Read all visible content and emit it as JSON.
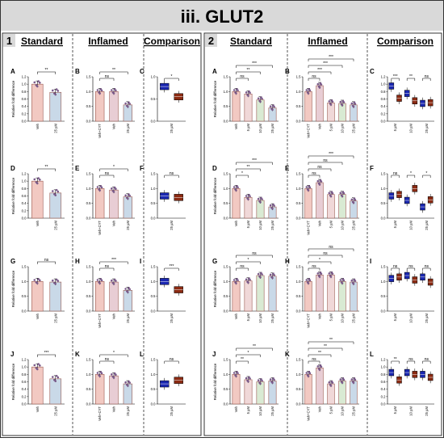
{
  "title": "iii. GLUT2",
  "colors": {
    "veh": "#f2c9c2",
    "bar_edge": "#9a5a50",
    "inflamed": "#e8cdd4",
    "conc5": "#f0d8d8",
    "conc10": "#d9ead3",
    "conc25": "#c9d9e8",
    "box_standard": "#1a27b0",
    "box_inflamed": "#8b2a12",
    "point": "#7a5a8a"
  },
  "panels": [
    {
      "number": "1",
      "headers": [
        "Standard",
        "Inflamed",
        "Comparison"
      ]
    },
    {
      "number": "2",
      "headers": [
        "Standard",
        "Inflamed",
        "Comparison"
      ]
    }
  ],
  "ylabel": "Relative fold difference",
  "sig": {
    "ns": "ns",
    "s1": "*",
    "s2": "**",
    "s3": "***"
  },
  "chart_data": [
    {
      "id": "1A",
      "type": "bar",
      "categories": [
        "Veh",
        "25 µM"
      ],
      "values": [
        1.0,
        0.78
      ],
      "ylim": [
        0,
        1.2
      ],
      "yticks": [
        0.0,
        0.2,
        0.4,
        0.6,
        0.8,
        1.0,
        1.2
      ],
      "annotations": [
        {
          "from": 0,
          "to": 1,
          "label": "**"
        }
      ]
    },
    {
      "id": "1B",
      "type": "bar",
      "categories": [
        "Veh+CYT",
        "Veh",
        "25 µM"
      ],
      "values": [
        1.0,
        1.0,
        0.55
      ],
      "ylim": [
        0,
        1.5
      ],
      "yticks": [
        0.0,
        0.5,
        1.0,
        1.5
      ],
      "annotations": [
        {
          "from": 0,
          "to": 1,
          "label": "ns"
        },
        {
          "from": 0,
          "to": 2,
          "label": "**"
        }
      ]
    },
    {
      "id": "1C",
      "type": "box",
      "categories": [
        "25 µM"
      ],
      "values": [
        0.78,
        0.55
      ],
      "ylim": [
        0,
        1.0
      ],
      "yticks": [
        0.0,
        0.5,
        1.0
      ],
      "annotations": [
        {
          "from": 0,
          "to": 1,
          "label": "*"
        }
      ]
    },
    {
      "id": "1D",
      "type": "bar",
      "categories": [
        "Veh",
        "25 µM"
      ],
      "values": [
        1.0,
        0.68
      ],
      "ylim": [
        0,
        1.2
      ],
      "yticks": [
        0.0,
        0.2,
        0.4,
        0.6,
        0.8,
        1.0,
        1.2
      ],
      "annotations": [
        {
          "from": 0,
          "to": 1,
          "label": "**"
        }
      ]
    },
    {
      "id": "1E",
      "type": "bar",
      "categories": [
        "Veh+CYT",
        "Veh",
        "25 µM"
      ],
      "values": [
        1.0,
        0.95,
        0.72
      ],
      "ylim": [
        0,
        1.5
      ],
      "yticks": [
        0.0,
        0.5,
        1.0,
        1.5
      ],
      "annotations": [
        {
          "from": 0,
          "to": 1,
          "label": "ns"
        },
        {
          "from": 0,
          "to": 2,
          "label": "*"
        }
      ]
    },
    {
      "id": "1F",
      "type": "box",
      "categories": [
        "25 µM"
      ],
      "values": [
        0.75,
        0.7
      ],
      "ylim": [
        0,
        1.5
      ],
      "yticks": [
        0.0,
        0.5,
        1.0,
        1.5
      ],
      "annotations": [
        {
          "from": 0,
          "to": 1,
          "label": "ns"
        }
      ]
    },
    {
      "id": "1G",
      "type": "bar",
      "categories": [
        "Veh",
        "25 µM"
      ],
      "values": [
        1.0,
        0.98
      ],
      "ylim": [
        0,
        1.5
      ],
      "yticks": [
        0.0,
        0.5,
        1.0,
        1.5
      ],
      "annotations": [
        {
          "from": 0,
          "to": 1,
          "label": "ns"
        }
      ]
    },
    {
      "id": "1H",
      "type": "bar",
      "categories": [
        "Veh+CYT",
        "Veh",
        "25 µM"
      ],
      "values": [
        1.0,
        0.98,
        0.7
      ],
      "ylim": [
        0,
        1.5
      ],
      "yticks": [
        0.0,
        0.5,
        1.0,
        1.5
      ],
      "annotations": [
        {
          "from": 0,
          "to": 1,
          "label": "ns"
        },
        {
          "from": 0,
          "to": 2,
          "label": "***"
        }
      ]
    },
    {
      "id": "1I",
      "type": "box",
      "categories": [
        "25 µM"
      ],
      "values": [
        1.0,
        0.72
      ],
      "ylim": [
        0,
        1.5
      ],
      "yticks": [
        0.0,
        0.5,
        1.0,
        1.5
      ],
      "annotations": [
        {
          "from": 0,
          "to": 1,
          "label": "***"
        }
      ]
    },
    {
      "id": "1J",
      "type": "bar",
      "categories": [
        "Veh",
        "25 µM"
      ],
      "values": [
        1.0,
        0.68
      ],
      "ylim": [
        0,
        1.2
      ],
      "yticks": [
        0.0,
        0.2,
        0.4,
        0.6,
        0.8,
        1.0,
        1.2
      ],
      "annotations": [
        {
          "from": 0,
          "to": 1,
          "label": "***"
        }
      ]
    },
    {
      "id": "1K",
      "type": "bar",
      "categories": [
        "Veh+CYT",
        "Veh",
        "25 µM"
      ],
      "values": [
        1.0,
        0.95,
        0.68
      ],
      "ylim": [
        0,
        1.5
      ],
      "yticks": [
        0.0,
        0.5,
        1.0,
        1.5
      ],
      "annotations": [
        {
          "from": 0,
          "to": 1,
          "label": "ns"
        },
        {
          "from": 0,
          "to": 2,
          "label": "*"
        }
      ]
    },
    {
      "id": "1L",
      "type": "box",
      "categories": [
        "25 µM"
      ],
      "values": [
        0.68,
        0.8
      ],
      "ylim": [
        0,
        1.5
      ],
      "yticks": [
        0.0,
        0.5,
        1.0,
        1.5
      ],
      "annotations": [
        {
          "from": 0,
          "to": 1,
          "label": "ns"
        }
      ]
    },
    {
      "id": "2A",
      "type": "bar",
      "categories": [
        "Veh",
        "5 µM",
        "10 µM",
        "25 µM"
      ],
      "values": [
        1.0,
        0.92,
        0.72,
        0.45
      ],
      "ylim": [
        0,
        1.5
      ],
      "yticks": [
        0.0,
        0.5,
        1.0,
        1.5
      ],
      "annotations": [
        {
          "from": 0,
          "to": 1,
          "label": "ns"
        },
        {
          "from": 0,
          "to": 2,
          "label": "**"
        },
        {
          "from": 0,
          "to": 3,
          "label": "***"
        }
      ]
    },
    {
      "id": "2B",
      "type": "bar",
      "categories": [
        "Veh+CYT",
        "Veh",
        "5 µM",
        "10 µM",
        "25 µM"
      ],
      "values": [
        1.0,
        1.2,
        0.62,
        0.6,
        0.55
      ],
      "ylim": [
        0,
        1.5
      ],
      "yticks": [
        0.0,
        0.5,
        1.0,
        1.5
      ],
      "annotations": [
        {
          "from": 0,
          "to": 1,
          "label": "ns"
        },
        {
          "from": 0,
          "to": 2,
          "label": "***"
        },
        {
          "from": 0,
          "to": 3,
          "label": "***"
        },
        {
          "from": 0,
          "to": 4,
          "label": "***"
        }
      ]
    },
    {
      "id": "2C",
      "type": "box",
      "categories": [
        "5 µM",
        "10 µM",
        "25 µM"
      ],
      "values": [
        0.95,
        0.62,
        0.75,
        0.55,
        0.48,
        0.5
      ],
      "ylim": [
        0,
        1.2
      ],
      "yticks": [
        0.0,
        0.2,
        0.4,
        0.6,
        0.8,
        1.0,
        1.2
      ],
      "annotations": [
        {
          "from": 0,
          "to": 1,
          "label": "***"
        },
        {
          "from": 2,
          "to": 3,
          "label": "**"
        },
        {
          "from": 4,
          "to": 5,
          "label": "ns"
        }
      ]
    },
    {
      "id": "2D",
      "type": "bar",
      "categories": [
        "Veh",
        "5 µM",
        "10 µM",
        "25 µM"
      ],
      "values": [
        1.0,
        0.7,
        0.6,
        0.38
      ],
      "ylim": [
        0,
        1.5
      ],
      "yticks": [
        0.0,
        0.5,
        1.0,
        1.5
      ],
      "annotations": [
        {
          "from": 0,
          "to": 1,
          "label": "*"
        },
        {
          "from": 0,
          "to": 2,
          "label": "**"
        },
        {
          "from": 0,
          "to": 3,
          "label": "***"
        }
      ]
    },
    {
      "id": "2E",
      "type": "bar",
      "categories": [
        "Veh+CYT",
        "Veh",
        "5 µM",
        "10 µM",
        "25 µM"
      ],
      "values": [
        1.0,
        1.2,
        0.8,
        0.8,
        0.58
      ],
      "ylim": [
        0,
        1.5
      ],
      "yticks": [
        0.0,
        0.5,
        1.0,
        1.5
      ],
      "annotations": [
        {
          "from": 0,
          "to": 1,
          "label": "ns"
        },
        {
          "from": 0,
          "to": 2,
          "label": "ns"
        },
        {
          "from": 0,
          "to": 3,
          "label": "ns"
        },
        {
          "from": 0,
          "to": 4,
          "label": "***"
        }
      ]
    },
    {
      "id": "2F",
      "type": "box",
      "categories": [
        "5 µM",
        "10 µM",
        "25 µM"
      ],
      "values": [
        0.75,
        0.8,
        0.6,
        1.0,
        0.38,
        0.62
      ],
      "ylim": [
        0,
        1.5
      ],
      "yticks": [
        0.0,
        0.5,
        1.0,
        1.5
      ],
      "annotations": [
        {
          "from": 0,
          "to": 1,
          "label": "ns"
        },
        {
          "from": 2,
          "to": 3,
          "label": "*"
        },
        {
          "from": 4,
          "to": 5,
          "label": "*"
        }
      ]
    },
    {
      "id": "2G",
      "type": "bar",
      "categories": [
        "Veh",
        "5 µM",
        "10 µM",
        "25 µM"
      ],
      "values": [
        1.0,
        1.02,
        1.2,
        1.18
      ],
      "ylim": [
        0,
        1.5
      ],
      "yticks": [
        0.0,
        0.5,
        1.0,
        1.5
      ],
      "annotations": [
        {
          "from": 0,
          "to": 1,
          "label": "ns"
        },
        {
          "from": 0,
          "to": 2,
          "label": "*"
        },
        {
          "from": 0,
          "to": 3,
          "label": "ns"
        }
      ]
    },
    {
      "id": "2H",
      "type": "bar",
      "categories": [
        "Veh+CYT",
        "Veh",
        "5 µM",
        "10 µM",
        "25 µM"
      ],
      "values": [
        1.0,
        1.22,
        1.22,
        1.0,
        0.98
      ],
      "ylim": [
        0,
        1.5
      ],
      "yticks": [
        0.0,
        0.5,
        1.0,
        1.5
      ],
      "annotations": [
        {
          "from": 0,
          "to": 1,
          "label": "ns"
        },
        {
          "from": 0,
          "to": 2,
          "label": "*"
        },
        {
          "from": 0,
          "to": 3,
          "label": "ns"
        },
        {
          "from": 0,
          "to": 4,
          "label": "ns"
        }
      ]
    },
    {
      "id": "2I",
      "type": "box",
      "categories": [
        "5 µM",
        "10 µM",
        "25 µM"
      ],
      "values": [
        1.1,
        1.15,
        1.2,
        1.05,
        1.15,
        0.98
      ],
      "ylim": [
        0,
        1.5
      ],
      "yticks": [
        0.0,
        0.5,
        1.0,
        1.5
      ],
      "annotations": [
        {
          "from": 0,
          "to": 1,
          "label": "ns"
        },
        {
          "from": 2,
          "to": 3,
          "label": "ns"
        },
        {
          "from": 4,
          "to": 5,
          "label": "ns"
        }
      ]
    },
    {
      "id": "2J",
      "type": "bar",
      "categories": [
        "Veh",
        "5 µM",
        "10 µM",
        "25 µM"
      ],
      "values": [
        1.0,
        0.82,
        0.75,
        0.78
      ],
      "ylim": [
        0,
        1.5
      ],
      "yticks": [
        0.0,
        0.5,
        1.0,
        1.5
      ],
      "annotations": [
        {
          "from": 0,
          "to": 1,
          "label": "**"
        },
        {
          "from": 0,
          "to": 2,
          "label": "*"
        },
        {
          "from": 0,
          "to": 3,
          "label": "**"
        }
      ]
    },
    {
      "id": "2K",
      "type": "bar",
      "categories": [
        "Veh+CYT",
        "Veh",
        "5 µM",
        "10 µM",
        "25 µM"
      ],
      "values": [
        1.0,
        1.22,
        0.68,
        0.78,
        0.78
      ],
      "ylim": [
        0,
        1.5
      ],
      "yticks": [
        0.0,
        0.5,
        1.0,
        1.5
      ],
      "annotations": [
        {
          "from": 0,
          "to": 1,
          "label": "ns"
        },
        {
          "from": 0,
          "to": 2,
          "label": "**"
        },
        {
          "from": 0,
          "to": 3,
          "label": "**"
        },
        {
          "from": 0,
          "to": 4,
          "label": "**"
        }
      ]
    },
    {
      "id": "2L",
      "type": "box",
      "categories": [
        "5 µM",
        "10 µM",
        "25 µM"
      ],
      "values": [
        0.85,
        0.65,
        0.85,
        0.8,
        0.8,
        0.72
      ],
      "ylim": [
        0,
        1.2
      ],
      "yticks": [
        0.0,
        0.2,
        0.4,
        0.6,
        0.8,
        1.0,
        1.2
      ],
      "annotations": [
        {
          "from": 0,
          "to": 1,
          "label": "**"
        },
        {
          "from": 2,
          "to": 3,
          "label": "ns"
        },
        {
          "from": 4,
          "to": 5,
          "label": "ns"
        }
      ]
    }
  ]
}
